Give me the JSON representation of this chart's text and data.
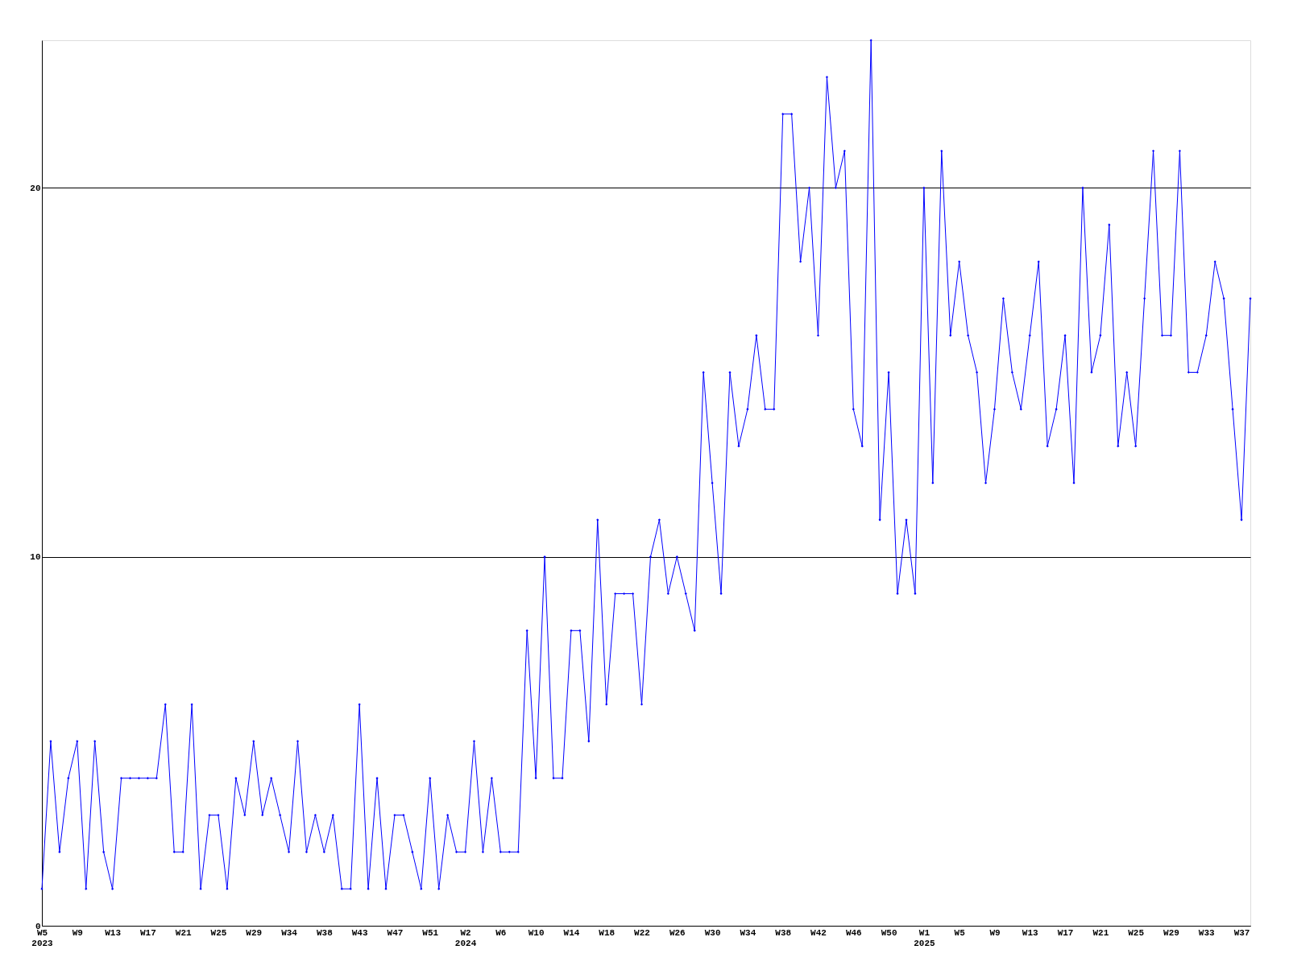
{
  "chart_data": {
    "type": "line",
    "categories": [
      "W5 2023",
      null,
      null,
      null,
      "W9",
      null,
      null,
      null,
      "W13",
      null,
      null,
      null,
      "W17",
      null,
      null,
      null,
      "W21",
      null,
      null,
      null,
      "W25",
      null,
      null,
      null,
      "W29",
      null,
      null,
      null,
      "W34",
      null,
      null,
      null,
      "W38",
      null,
      null,
      null,
      "W43",
      null,
      null,
      null,
      "W47",
      null,
      null,
      null,
      "W51",
      null,
      null,
      null,
      "W2 2024",
      null,
      null,
      null,
      "W6",
      null,
      null,
      null,
      "W10",
      null,
      null,
      null,
      "W14",
      null,
      null,
      null,
      "W18",
      null,
      null,
      null,
      "W22",
      null,
      null,
      null,
      "W26",
      null,
      null,
      null,
      "W30",
      null,
      null,
      null,
      "W34",
      null,
      null,
      null,
      "W38",
      null,
      null,
      null,
      "W42",
      null,
      null,
      null,
      "W46",
      null,
      null,
      null,
      "W50",
      null,
      null,
      null,
      "W1 2025",
      null,
      null,
      null,
      "W5",
      null,
      null,
      null,
      "W9",
      null,
      null,
      null,
      "W13",
      null,
      null,
      null,
      "W17",
      null,
      null,
      null,
      "W21",
      null,
      null,
      null,
      "W25",
      null,
      null,
      null,
      "W29",
      null,
      null,
      null,
      "W33",
      null,
      null,
      null,
      "W37",
      null
    ],
    "series": [
      {
        "color": "#0000ff",
        "values": [
          1,
          5,
          2,
          4,
          5,
          1,
          5,
          2,
          1,
          4,
          4,
          4,
          4,
          4,
          6,
          2,
          2,
          6,
          1,
          3,
          3,
          1,
          4,
          3,
          5,
          3,
          4,
          3,
          2,
          5,
          2,
          3,
          2,
          3,
          1,
          1,
          6,
          1,
          4,
          1,
          3,
          3,
          2,
          1,
          4,
          1,
          3,
          2,
          2,
          5,
          2,
          4,
          2,
          2,
          2,
          8,
          4,
          10,
          4,
          4,
          8,
          8,
          5,
          11,
          6,
          9,
          9,
          9,
          6,
          10,
          11,
          9,
          10,
          9,
          8,
          15,
          12,
          9,
          15,
          13,
          14,
          16,
          14,
          14,
          22,
          22,
          18,
          20,
          16,
          23,
          20,
          21,
          14,
          13,
          24,
          11,
          15,
          9,
          11,
          9,
          20,
          12,
          21,
          16,
          18,
          16,
          15,
          12,
          14,
          17,
          15,
          14,
          16,
          18,
          13,
          14,
          16,
          12,
          20,
          15,
          16,
          19,
          13,
          15,
          13,
          17,
          21,
          16,
          16,
          21,
          15,
          15,
          16,
          18,
          17,
          14,
          11,
          17
        ]
      }
    ],
    "ylim": [
      0,
      24
    ],
    "yticks": [
      0,
      10,
      20
    ],
    "grid": "y",
    "marker": "diamond",
    "line_style": "solid"
  }
}
